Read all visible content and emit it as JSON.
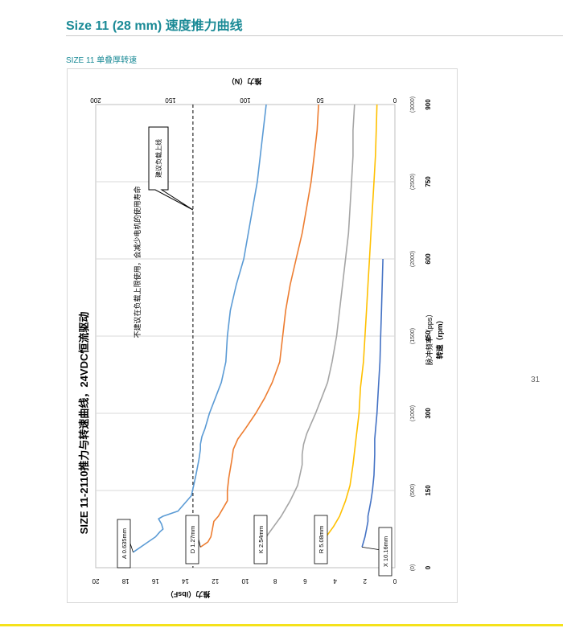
{
  "page": {
    "title": "Size 11 (28 mm) 速度推力曲线",
    "section_label": "SIZE 11 单叠厚转速",
    "page_number": "31"
  },
  "chart_data": {
    "type": "line",
    "orientation": "rotated-90-clockwise",
    "title": "SIZE 11-2110推力与转速曲线，24VDC恒流驱动",
    "x_axis": {
      "label_pps": "脉冲频率（pps）",
      "label_rpm": "转速（rpm）",
      "range": [
        0,
        900
      ],
      "ticks_rpm": [
        "0",
        "150",
        "300",
        "450",
        "600",
        "750",
        "900"
      ],
      "ticks_pps": [
        "(0)",
        "(500)",
        "(1000)",
        "(1500)",
        "(2000)",
        "(2500)",
        "(3000)"
      ]
    },
    "y_axis_left": {
      "label": "推力（lbsF）",
      "range": [
        0,
        20
      ],
      "ticks": [
        "0",
        "2",
        "4",
        "6",
        "8",
        "10",
        "12",
        "14",
        "16",
        "18",
        "20"
      ]
    },
    "y_axis_right": {
      "label": "推力（N）",
      "range": [
        0,
        200
      ],
      "ticks": [
        "0",
        "50",
        "100",
        "150",
        "200"
      ]
    },
    "grid": true,
    "series": [
      {
        "name": "A 0.635mm",
        "color": "#5b9bd5",
        "x": [
          30,
          50,
          60,
          70,
          75,
          85,
          95,
          100,
          110,
          140,
          180,
          210,
          230,
          240,
          255,
          270,
          300,
          330,
          360,
          400,
          450,
          500,
          550,
          600,
          650,
          700,
          750,
          800,
          850,
          900
        ],
        "y": [
          17.5,
          16.5,
          16.0,
          15.7,
          15.5,
          15.6,
          15.8,
          15.5,
          14.5,
          13.6,
          13.3,
          13.1,
          13.0,
          13.0,
          12.9,
          12.7,
          12.4,
          12.0,
          11.6,
          11.3,
          11.2,
          11.0,
          10.6,
          10.1,
          9.8,
          9.5,
          9.2,
          9.0,
          8.8,
          8.6
        ]
      },
      {
        "name": "D 1.27mm",
        "color": "#ed7d31",
        "x": [
          40,
          50,
          60,
          75,
          90,
          100,
          120,
          130,
          150,
          175,
          210,
          230,
          250,
          270,
          300,
          330,
          360,
          400,
          450,
          500,
          550,
          600,
          650,
          700,
          750,
          800,
          850,
          900
        ],
        "y": [
          13.0,
          12.5,
          12.3,
          12.2,
          12.1,
          11.8,
          11.4,
          11.2,
          11.2,
          11.1,
          10.9,
          10.8,
          10.5,
          10.0,
          9.3,
          8.7,
          8.2,
          7.7,
          7.5,
          7.3,
          7.0,
          6.6,
          6.2,
          5.9,
          5.6,
          5.4,
          5.2,
          5.1
        ]
      },
      {
        "name": "K 2.54mm",
        "color": "#a5a5a5",
        "x": [
          40,
          60,
          80,
          100,
          130,
          160,
          200,
          220,
          240,
          260,
          280,
          300,
          330,
          360,
          400,
          450,
          500,
          550,
          600,
          650,
          700,
          750,
          800,
          850,
          900
        ],
        "y": [
          9.0,
          8.6,
          8.1,
          7.6,
          7.0,
          6.5,
          6.2,
          6.2,
          6.1,
          5.9,
          5.6,
          5.3,
          4.9,
          4.5,
          4.2,
          3.9,
          3.7,
          3.5,
          3.3,
          3.1,
          3.0,
          2.9,
          2.8,
          2.8,
          2.7
        ]
      },
      {
        "name": "R 5.08mm",
        "color": "#ffc000",
        "x": [
          40,
          60,
          80,
          100,
          130,
          160,
          200,
          250,
          300,
          350,
          400,
          450,
          500,
          550,
          600,
          650,
          700,
          750,
          800,
          850,
          900
        ],
        "y": [
          5.1,
          4.6,
          4.1,
          3.7,
          3.3,
          3.0,
          2.8,
          2.6,
          2.4,
          2.3,
          2.1,
          2.0,
          1.9,
          1.8,
          1.7,
          1.6,
          1.5,
          1.4,
          1.3,
          1.25,
          1.2
        ]
      },
      {
        "name": "X 10.16mm",
        "color": "#4472c4",
        "x": [
          40,
          60,
          75,
          90,
          100,
          115,
          130,
          150,
          180,
          220,
          250,
          300,
          350,
          400,
          450,
          500,
          550,
          600
        ],
        "y": [
          2.2,
          2.0,
          1.9,
          1.8,
          1.8,
          1.7,
          1.6,
          1.5,
          1.4,
          1.35,
          1.35,
          1.2,
          1.1,
          1.0,
          0.95,
          0.9,
          0.85,
          0.8
        ]
      }
    ],
    "reference_line": {
      "label": "建议负载上线",
      "y": 13.5
    },
    "annotation": "不建议在负载上限使用，会减少电机的使用寿命"
  }
}
